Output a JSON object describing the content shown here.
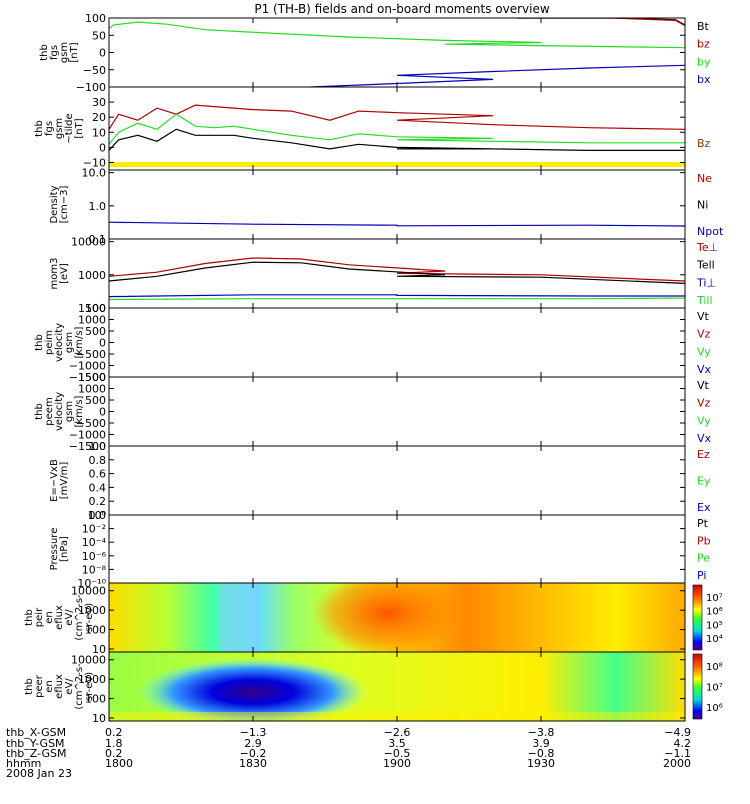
{
  "title": "P1 (TH-B) fields and on-board moments overview",
  "colors": {
    "black": "#000000",
    "red": "#b00000",
    "green": "#22dd22",
    "blue": "#0000bb",
    "yellow": "#ffee00"
  },
  "chart_data": [
    {
      "id": "fgs_gsm",
      "type": "line",
      "ylabel": [
        "thb",
        "fgs",
        "gsm",
        "[nT]"
      ],
      "ylim": [
        -100,
        100
      ],
      "yticks": [
        100,
        50,
        0,
        -50,
        -100
      ],
      "yticklabels": [
        "100",
        "50",
        "0",
        "−50",
        "−100"
      ],
      "legend": [
        "Bt",
        "bz",
        "by",
        "bx"
      ],
      "series": [
        {
          "name": "Bt",
          "color": "black",
          "x": [
            1925,
            1945,
            1958,
            2000
          ],
          "y": [
            100,
            100,
            95,
            80
          ]
        },
        {
          "name": "bz",
          "color": "red",
          "x": [
            1925,
            1945,
            1958,
            2000
          ],
          "y": [
            100,
            100,
            93,
            78
          ]
        },
        {
          "name": "by",
          "color": "green",
          "x": [
            1800,
            1801,
            1806,
            1812,
            1820,
            1835,
            1850,
            1870,
            1890,
            1910,
            1930,
            1950,
            1970,
            1990,
            2000
          ],
          "y": [
            70,
            80,
            88,
            82,
            66,
            55,
            45,
            35,
            29,
            24,
            20,
            16,
            12,
            8,
            5
          ]
        },
        {
          "name": "bx",
          "color": "blue",
          "x": [
            1842,
            1860,
            1880,
            1900,
            1920,
            1940,
            1960,
            1980,
            2000
          ],
          "y": [
            -100,
            -90,
            -78,
            -66,
            -55,
            -45,
            -37,
            -30,
            -24
          ]
        }
      ]
    },
    {
      "id": "fgs_gsm_tilde",
      "type": "line",
      "ylabel": [
        "thb",
        "fgs",
        "gsm",
        "~tilde",
        "[nT]"
      ],
      "ylim": [
        -15,
        40
      ],
      "yticks": [
        30,
        20,
        10,
        0,
        -10
      ],
      "yticklabels": [
        "30",
        "20",
        "10",
        "0",
        "−10"
      ],
      "legend": [
        "Bz"
      ],
      "band_color": "yellow",
      "series": [
        {
          "name": "Bz_red",
          "color": "red",
          "x": [
            1800,
            1802,
            1806,
            1810,
            1814,
            1818,
            1822,
            1826,
            1830,
            1838,
            1846,
            1852,
            1860,
            1880,
            1900,
            1920,
            1940,
            1960,
            1975,
            1990,
            2000
          ],
          "y": [
            12,
            22,
            18,
            26,
            22,
            28,
            27,
            26,
            25,
            24,
            18,
            24,
            23,
            21,
            18,
            15,
            13,
            12,
            7,
            2,
            1
          ]
        },
        {
          "name": "Bz_green",
          "color": "green",
          "x": [
            1800,
            1802,
            1806,
            1810,
            1814,
            1818,
            1822,
            1826,
            1830,
            1838,
            1846,
            1852,
            1860,
            1880,
            1900,
            1920,
            1940,
            1960,
            1975,
            1990,
            2000
          ],
          "y": [
            2,
            10,
            16,
            12,
            22,
            14,
            13,
            14,
            12,
            8,
            5,
            9,
            7,
            6,
            5,
            4,
            3,
            3,
            2,
            1,
            1
          ]
        },
        {
          "name": "Bz_black",
          "color": "black",
          "x": [
            1800,
            1802,
            1806,
            1810,
            1814,
            1818,
            1822,
            1826,
            1830,
            1838,
            1846,
            1852,
            1860,
            1880,
            1900,
            1920,
            1940,
            1960,
            1975,
            1990,
            2000
          ],
          "y": [
            -2,
            5,
            8,
            4,
            12,
            8,
            8,
            8,
            6,
            3,
            -1,
            2,
            0,
            -1,
            -1,
            -1,
            -2,
            -2,
            -1,
            -1,
            -1
          ]
        }
      ]
    },
    {
      "id": "density",
      "type": "line",
      "ylabel": [
        "Density",
        "[cm−3]"
      ],
      "log": true,
      "ylim": [
        0.1,
        12
      ],
      "yticks": [
        10,
        1,
        0.1
      ],
      "yticklabels": [
        "10.0",
        "1.0",
        "0.1"
      ],
      "legend": [
        "Ne",
        "Ni",
        "Npot"
      ],
      "series": [
        {
          "name": "Npot",
          "color": "blue",
          "x": [
            1800,
            1815,
            1830,
            1860,
            1900,
            1940,
            1970,
            1985,
            2000
          ],
          "y": [
            0.32,
            0.3,
            0.28,
            0.26,
            0.25,
            0.26,
            0.24,
            0.19,
            0.3
          ]
        }
      ]
    },
    {
      "id": "temperature",
      "type": "line",
      "ylabel": [
        "mom3",
        "[eV]"
      ],
      "log": true,
      "ylim": [
        100,
        12000
      ],
      "yticks": [
        10000,
        1000,
        100
      ],
      "yticklabels": [
        "10000",
        "1000",
        "100"
      ],
      "legend": [
        "Te⊥",
        "Tell",
        "Ti⊥",
        "Till"
      ],
      "series": [
        {
          "name": "Te⊥",
          "color": "red",
          "x": [
            1800,
            1810,
            1820,
            1830,
            1840,
            1850,
            1870,
            1900,
            1930,
            1960,
            1975,
            1982,
            1990,
            2000
          ],
          "y": [
            900,
            1200,
            2200,
            3200,
            3000,
            2000,
            1300,
            1100,
            1000,
            650,
            550,
            900,
            650,
            480
          ]
        },
        {
          "name": "Tell",
          "color": "black",
          "x": [
            1800,
            1810,
            1820,
            1830,
            1840,
            1850,
            1870,
            1900,
            1930,
            1960,
            1975,
            1982,
            1990,
            2000
          ],
          "y": [
            650,
            900,
            1600,
            2400,
            2300,
            1500,
            1000,
            900,
            850,
            550,
            450,
            700,
            550,
            420
          ]
        },
        {
          "name": "Ti⊥",
          "color": "blue",
          "x": [
            1800,
            1830,
            1860,
            1900,
            1940,
            1960,
            1975,
            1990,
            2000
          ],
          "y": [
            220,
            250,
            250,
            240,
            230,
            230,
            300,
            650,
            900
          ]
        },
        {
          "name": "Till",
          "color": "green",
          "x": [
            1800,
            1830,
            1860,
            1900,
            1940,
            1960,
            1975,
            1990,
            2000
          ],
          "y": [
            180,
            190,
            190,
            190,
            190,
            200,
            280,
            500,
            650
          ]
        }
      ]
    },
    {
      "id": "peim_velocity",
      "type": "line",
      "ylabel": [
        "thb",
        "peim",
        "velocity",
        "gsm",
        "[km/s]"
      ],
      "ylim": [
        -1500,
        1500
      ],
      "yticks": [
        1500,
        1000,
        500,
        0,
        -500,
        -1000,
        -1500
      ],
      "yticklabels": [
        "1500",
        "1000",
        "500",
        "0",
        "−500",
        "−1000",
        "−1500"
      ],
      "legend": [
        "Vt",
        "Vz",
        "Vy",
        "Vx"
      ],
      "series": []
    },
    {
      "id": "peem_velocity",
      "type": "line",
      "ylabel": [
        "thb",
        "peem",
        "velocity",
        "gsm",
        "[km/s]"
      ],
      "ylim": [
        -1500,
        1500
      ],
      "yticks": [
        1500,
        1000,
        500,
        0,
        -500,
        -1000,
        -1500
      ],
      "yticklabels": [
        "1500",
        "1000",
        "500",
        "0",
        "−500",
        "−1000",
        "−1500"
      ],
      "legend": [
        "Vt",
        "Vz",
        "Vy",
        "Vx"
      ],
      "series": []
    },
    {
      "id": "efield",
      "type": "line",
      "ylabel": [
        "E=−VxB",
        "[mV/m]"
      ],
      "ylim": [
        0,
        1
      ],
      "yticks": [
        1.0,
        0.8,
        0.6,
        0.4,
        0.2,
        0.0
      ],
      "yticklabels": [
        "1.0",
        "0.8",
        "0.6",
        "0.4",
        "0.2",
        "0.0"
      ],
      "legend": [
        "Ez",
        "Ey",
        "Ex"
      ],
      "series": []
    },
    {
      "id": "pressure",
      "type": "line",
      "ylabel": [
        "Pressure",
        "[nPa]"
      ],
      "log": true,
      "ylim": [
        1e-10,
        1
      ],
      "yticks": [
        1,
        0.01,
        0.0001,
        1e-06,
        1e-08,
        1e-10
      ],
      "yticklabels": [
        "10⁰",
        "10⁻²",
        "10⁻⁴",
        "10⁻⁶",
        "10⁻⁸",
        "10⁻¹⁰"
      ],
      "legend": [
        "Pt",
        "Pb",
        "Pe",
        "Pi"
      ],
      "series": []
    },
    {
      "id": "peir_eflux",
      "type": "heatmap",
      "ylabel": [
        "thb",
        "peir",
        "en",
        "eflux",
        "eV/",
        "(cm^2-s-",
        "sr-eV)"
      ],
      "log": true,
      "ylim": [
        7,
        25000
      ],
      "yticks": [
        10000,
        1000,
        100,
        10
      ],
      "yticklabels": [
        "10000",
        "1000",
        "100",
        "10"
      ],
      "colorbar_ticks": [
        "10⁷",
        "10⁶",
        "10⁵",
        "10⁴"
      ]
    },
    {
      "id": "peer_eflux",
      "type": "heatmap",
      "ylabel": [
        "thb",
        "peer",
        "en",
        "eflux",
        "eV/",
        "(cm^2-s-",
        "sr-eV)"
      ],
      "log": true,
      "ylim": [
        7,
        25000
      ],
      "yticks": [
        10000,
        1000,
        100,
        10
      ],
      "yticklabels": [
        "10000",
        "1000",
        "100",
        "10"
      ],
      "colorbar_ticks": [
        "10⁸",
        "10⁷",
        "10⁶"
      ]
    }
  ],
  "xaxis": {
    "xlim": [
      1800,
      2000
    ],
    "ticks": [
      1800,
      1830,
      1900,
      1930,
      2000
    ],
    "rows": [
      {
        "label": "thb_X-GSM",
        "values": [
          "0.2",
          "−1.3",
          "−2.6",
          "−3.8",
          "−4.9"
        ]
      },
      {
        "label": "thb_Y-GSM",
        "values": [
          "1.8",
          "2.9",
          "3.5",
          "3.9",
          "4.2"
        ]
      },
      {
        "label": "thb_Z-GSM",
        "values": [
          "0.2",
          "−0.2",
          "−0.5",
          "−0.8",
          "−1.1"
        ]
      },
      {
        "label": "hhmm",
        "values": [
          "1800",
          "1830",
          "1900",
          "1930",
          "2000"
        ]
      }
    ],
    "date": "2008 Jan 23"
  }
}
